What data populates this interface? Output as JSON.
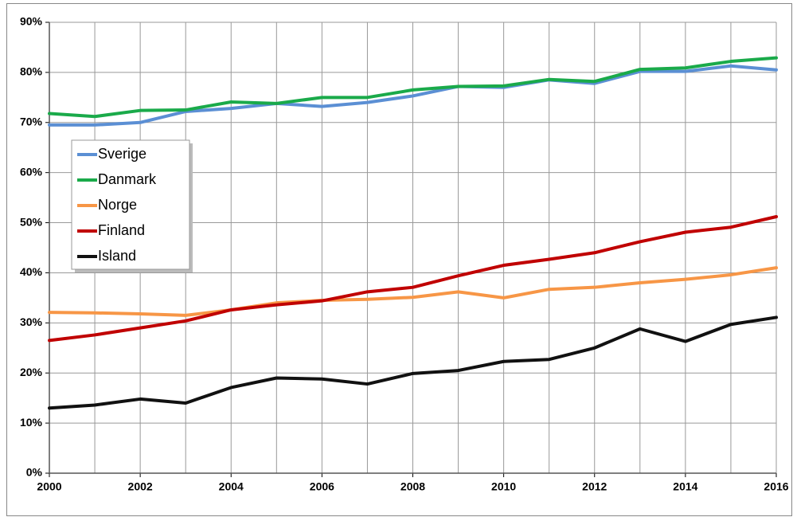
{
  "chart_data": {
    "type": "line",
    "x": [
      2000,
      2001,
      2002,
      2003,
      2004,
      2005,
      2006,
      2007,
      2008,
      2009,
      2010,
      2011,
      2012,
      2013,
      2014,
      2015,
      2016
    ],
    "series": [
      {
        "name": "Sverige",
        "color": "#5b8fd4",
        "values": [
          69.5,
          69.5,
          70,
          72.2,
          72.8,
          73.8,
          73.2,
          74,
          75.3,
          77.2,
          77,
          78.5,
          77.8,
          80.2,
          80.2,
          81.3,
          80.5
        ]
      },
      {
        "name": "Danmark",
        "color": "#1aaa4a",
        "values": [
          71.8,
          71.2,
          72.4,
          72.5,
          74.1,
          73.8,
          75,
          75,
          76.5,
          77.2,
          77.3,
          78.6,
          78.2,
          80.6,
          80.9,
          82.2,
          82.9
        ]
      },
      {
        "name": "Norge",
        "color": "#f79646",
        "values": [
          32.1,
          32,
          31.8,
          31.5,
          32.6,
          34,
          34.5,
          34.7,
          35.1,
          36.2,
          35,
          36.7,
          37.1,
          38,
          38.7,
          39.6,
          41
        ]
      },
      {
        "name": "Finland",
        "color": "#c00000",
        "values": [
          26.5,
          27.6,
          29,
          30.4,
          32.6,
          33.6,
          34.4,
          36.2,
          37.1,
          39.4,
          41.5,
          42.7,
          44,
          46.2,
          48.1,
          49.1,
          51.2
        ]
      },
      {
        "name": "Island",
        "color": "#111111",
        "values": [
          13,
          13.6,
          14.8,
          14,
          17.1,
          19,
          18.8,
          17.8,
          19.9,
          20.5,
          22.3,
          22.7,
          25,
          28.8,
          26.3,
          29.7,
          31.1
        ]
      }
    ],
    "xlim": [
      2000,
      2016
    ],
    "xticks": [
      2000,
      2002,
      2004,
      2006,
      2008,
      2010,
      2012,
      2014,
      2016
    ],
    "xminor": [
      2001,
      2003,
      2005,
      2007,
      2009,
      2011,
      2013,
      2015
    ],
    "ylim": [
      0,
      90
    ],
    "yticks": [
      {
        "value": 0,
        "label": "0%"
      },
      {
        "value": 10,
        "label": "10%"
      },
      {
        "value": 20,
        "label": "20%"
      },
      {
        "value": 30,
        "label": "30%"
      },
      {
        "value": 40,
        "label": "40%"
      },
      {
        "value": 50,
        "label": "50%"
      },
      {
        "value": 60,
        "label": "60%"
      },
      {
        "value": 70,
        "label": "70%"
      },
      {
        "value": 80,
        "label": "80%"
      },
      {
        "value": 90,
        "label": "90%"
      }
    ],
    "grid": true,
    "legend": "upper left"
  }
}
